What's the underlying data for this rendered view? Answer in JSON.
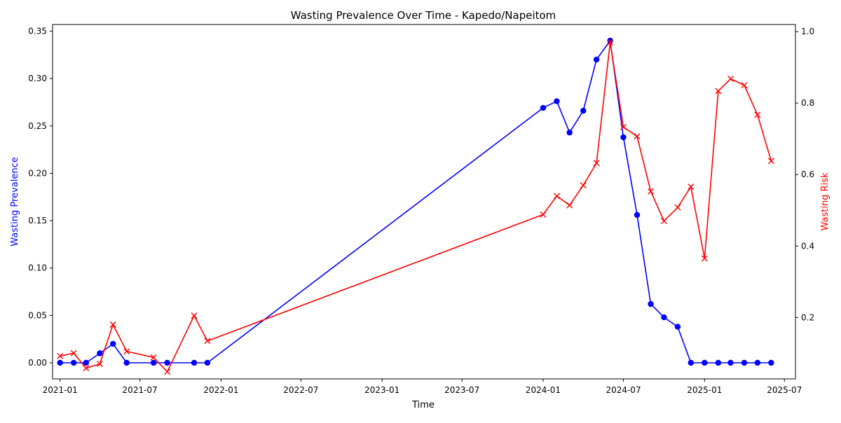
{
  "chart_data": {
    "type": "line",
    "title": "Wasting Prevalence Over Time - Kapedo/Napeitom",
    "xlabel": "Time",
    "ylabel_left": "Wasting Prevalence",
    "ylabel_right": "Wasting Risk",
    "x_ticks": [
      "2021-01",
      "2021-07",
      "2022-01",
      "2022-07",
      "2023-01",
      "2023-07",
      "2024-01",
      "2024-07",
      "2025-01",
      "2025-07"
    ],
    "xlim": [
      "2020-12-15",
      "2025-07-26"
    ],
    "ylim_left": [
      -0.017,
      0.357
    ],
    "ylim_right": [
      0.028,
      1.02
    ],
    "y_ticks_left": [
      0.0,
      0.05,
      0.1,
      0.15,
      0.2,
      0.25,
      0.3,
      0.35
    ],
    "y_ticks_right": [
      0.2,
      0.4,
      0.6,
      0.8,
      1.0
    ],
    "grid": false,
    "colors": {
      "prevalence": "#0000ff",
      "risk": "#ff0000"
    },
    "series": [
      {
        "axis": "left",
        "marker": "circle",
        "color": "#0000ff",
        "points": [
          [
            "2021-01-01",
            0.0
          ],
          [
            "2021-02-01",
            0.0
          ],
          [
            "2021-03-01",
            0.0
          ],
          [
            "2021-04-01",
            0.01
          ],
          [
            "2021-05-01",
            0.02
          ],
          [
            "2021-06-01",
            0.0
          ],
          [
            "2021-08-01",
            0.0
          ],
          [
            "2021-09-01",
            0.0
          ],
          [
            "2021-11-01",
            0.0
          ],
          [
            "2021-12-01",
            0.0
          ],
          [
            "2024-01-01",
            0.269
          ],
          [
            "2024-02-01",
            0.276
          ],
          [
            "2024-03-01",
            0.243
          ],
          [
            "2024-04-01",
            0.266
          ],
          [
            "2024-05-01",
            0.32
          ],
          [
            "2024-06-01",
            0.34
          ],
          [
            "2024-07-01",
            0.238
          ],
          [
            "2024-08-01",
            0.156
          ],
          [
            "2024-09-01",
            0.062
          ],
          [
            "2024-10-01",
            0.048
          ],
          [
            "2024-11-01",
            0.038
          ],
          [
            "2024-12-01",
            0.0
          ],
          [
            "2025-01-01",
            0.0
          ],
          [
            "2025-02-01",
            0.0
          ],
          [
            "2025-03-01",
            0.0
          ],
          [
            "2025-04-01",
            0.0
          ],
          [
            "2025-05-01",
            0.0
          ],
          [
            "2025-06-01",
            0.0
          ]
        ]
      },
      {
        "axis": "right",
        "marker": "x",
        "color": "#ff0000",
        "points": [
          [
            "2021-01-01",
            0.092
          ],
          [
            "2021-02-01",
            0.1
          ],
          [
            "2021-03-01",
            0.058
          ],
          [
            "2021-04-01",
            0.07
          ],
          [
            "2021-05-01",
            0.18
          ],
          [
            "2021-06-01",
            0.105
          ],
          [
            "2021-08-01",
            0.088
          ],
          [
            "2021-09-01",
            0.048
          ],
          [
            "2021-11-01",
            0.205
          ],
          [
            "2021-12-01",
            0.134
          ],
          [
            "2024-01-01",
            0.488
          ],
          [
            "2024-02-01",
            0.54
          ],
          [
            "2024-03-01",
            0.514
          ],
          [
            "2024-04-01",
            0.57
          ],
          [
            "2024-05-01",
            0.632
          ],
          [
            "2024-06-01",
            0.97
          ],
          [
            "2024-07-01",
            0.733
          ],
          [
            "2024-08-01",
            0.707
          ],
          [
            "2024-09-01",
            0.553
          ],
          [
            "2024-10-01",
            0.47
          ],
          [
            "2024-11-01",
            0.508
          ],
          [
            "2024-12-01",
            0.566
          ],
          [
            "2025-01-01",
            0.365
          ],
          [
            "2025-02-01",
            0.834
          ],
          [
            "2025-03-01",
            0.868
          ],
          [
            "2025-04-01",
            0.85
          ],
          [
            "2025-05-01",
            0.767
          ],
          [
            "2025-06-01",
            0.638
          ]
        ]
      }
    ]
  }
}
